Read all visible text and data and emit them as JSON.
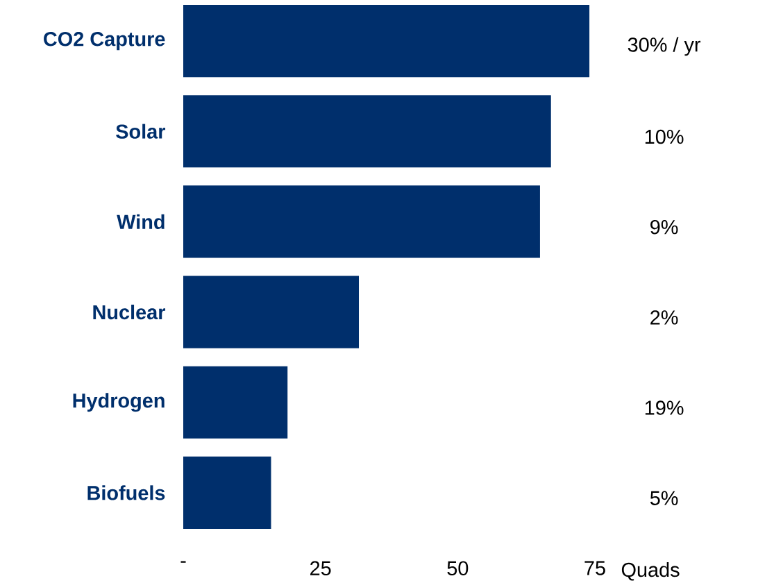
{
  "chart_data": {
    "type": "bar",
    "orientation": "horizontal",
    "categories": [
      "CO2 Capture",
      "Solar",
      "Wind",
      "Nuclear",
      "Hydrogen",
      "Biofuels"
    ],
    "values": [
      74,
      67,
      65,
      32,
      19,
      16
    ],
    "color": "#002f6c",
    "xlim": [
      0,
      75
    ],
    "xticks": [
      {
        "value": 0,
        "label": "-"
      },
      25,
      50,
      75
    ],
    "xlabel": "Quads",
    "annotations": [
      "30% / yr",
      "10%",
      "9%",
      "2%",
      "19%",
      "5%"
    ]
  }
}
